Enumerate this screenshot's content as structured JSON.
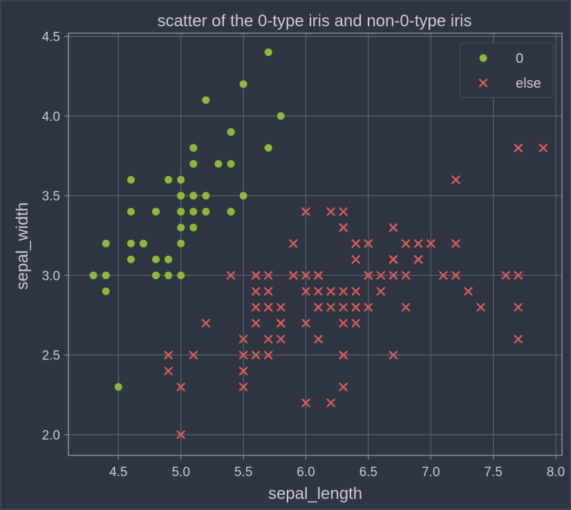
{
  "colors": {
    "background": "#2f3541",
    "frame": "#3d4350",
    "axes_border": "#8792a8",
    "grid": "#5d677a",
    "text": "#c8ccd4",
    "series_0": "#8db83a",
    "series_else": "#d65c5c"
  },
  "chart_data": {
    "type": "scatter",
    "title": "scatter of the 0-type iris and non-0-type iris",
    "xlabel": "sepal_length",
    "ylabel": "sepal_width",
    "xlim": [
      4.1,
      8.05
    ],
    "ylim": [
      1.87,
      4.52
    ],
    "xticks": [
      4.5,
      5.0,
      5.5,
      6.0,
      6.5,
      7.0,
      7.5,
      8.0
    ],
    "xtick_labels": [
      "4.5",
      "5.0",
      "5.5",
      "6.0",
      "6.5",
      "7.0",
      "7.5",
      "8.0"
    ],
    "yticks": [
      2.0,
      2.5,
      3.0,
      3.5,
      4.0,
      4.5
    ],
    "ytick_labels": [
      "2.0",
      "2.5",
      "3.0",
      "3.5",
      "4.0",
      "4.5"
    ],
    "grid": true,
    "legend_position": "top-right",
    "series": [
      {
        "name": "0",
        "marker": "circle",
        "points": [
          [
            5.1,
            3.5
          ],
          [
            4.9,
            3.0
          ],
          [
            4.7,
            3.2
          ],
          [
            4.6,
            3.1
          ],
          [
            5.0,
            3.6
          ],
          [
            5.4,
            3.9
          ],
          [
            4.6,
            3.4
          ],
          [
            5.0,
            3.4
          ],
          [
            4.4,
            2.9
          ],
          [
            4.9,
            3.1
          ],
          [
            5.4,
            3.7
          ],
          [
            4.8,
            3.4
          ],
          [
            4.8,
            3.0
          ],
          [
            4.3,
            3.0
          ],
          [
            5.8,
            4.0
          ],
          [
            5.7,
            4.4
          ],
          [
            5.4,
            3.9
          ],
          [
            5.1,
            3.5
          ],
          [
            5.7,
            3.8
          ],
          [
            5.1,
            3.8
          ],
          [
            5.4,
            3.4
          ],
          [
            5.1,
            3.7
          ],
          [
            4.6,
            3.6
          ],
          [
            5.1,
            3.3
          ],
          [
            4.8,
            3.4
          ],
          [
            5.0,
            3.0
          ],
          [
            5.0,
            3.4
          ],
          [
            5.2,
            3.5
          ],
          [
            5.2,
            3.4
          ],
          [
            4.7,
            3.2
          ],
          [
            4.8,
            3.1
          ],
          [
            5.4,
            3.4
          ],
          [
            5.2,
            4.1
          ],
          [
            5.5,
            4.2
          ],
          [
            4.9,
            3.1
          ],
          [
            5.0,
            3.2
          ],
          [
            5.5,
            3.5
          ],
          [
            4.9,
            3.6
          ],
          [
            4.4,
            3.0
          ],
          [
            5.1,
            3.4
          ],
          [
            5.0,
            3.5
          ],
          [
            4.5,
            2.3
          ],
          [
            4.4,
            3.2
          ],
          [
            5.0,
            3.5
          ],
          [
            5.1,
            3.8
          ],
          [
            4.8,
            3.0
          ],
          [
            5.1,
            3.8
          ],
          [
            4.6,
            3.2
          ],
          [
            5.3,
            3.7
          ],
          [
            5.0,
            3.3
          ]
        ]
      },
      {
        "name": "else",
        "marker": "x",
        "points": [
          [
            7.0,
            3.2
          ],
          [
            6.4,
            3.2
          ],
          [
            6.9,
            3.1
          ],
          [
            5.5,
            2.3
          ],
          [
            6.5,
            2.8
          ],
          [
            5.7,
            2.8
          ],
          [
            6.3,
            3.3
          ],
          [
            4.9,
            2.4
          ],
          [
            6.6,
            2.9
          ],
          [
            5.2,
            2.7
          ],
          [
            5.0,
            2.0
          ],
          [
            5.9,
            3.0
          ],
          [
            6.0,
            2.2
          ],
          [
            6.1,
            2.9
          ],
          [
            5.6,
            2.9
          ],
          [
            6.7,
            3.1
          ],
          [
            5.6,
            3.0
          ],
          [
            5.8,
            2.7
          ],
          [
            6.2,
            2.2
          ],
          [
            5.6,
            2.5
          ],
          [
            5.9,
            3.2
          ],
          [
            6.1,
            2.8
          ],
          [
            6.3,
            2.5
          ],
          [
            6.1,
            2.8
          ],
          [
            6.4,
            2.9
          ],
          [
            6.6,
            3.0
          ],
          [
            6.8,
            2.8
          ],
          [
            6.7,
            3.0
          ],
          [
            6.0,
            2.9
          ],
          [
            5.7,
            2.6
          ],
          [
            5.5,
            2.4
          ],
          [
            5.5,
            2.4
          ],
          [
            5.8,
            2.7
          ],
          [
            6.0,
            2.7
          ],
          [
            5.4,
            3.0
          ],
          [
            6.0,
            3.4
          ],
          [
            6.7,
            3.1
          ],
          [
            6.3,
            2.3
          ],
          [
            5.6,
            3.0
          ],
          [
            5.5,
            2.5
          ],
          [
            5.5,
            2.6
          ],
          [
            6.1,
            3.0
          ],
          [
            5.8,
            2.6
          ],
          [
            5.0,
            2.3
          ],
          [
            5.6,
            2.7
          ],
          [
            5.7,
            3.0
          ],
          [
            5.7,
            2.9
          ],
          [
            6.2,
            2.9
          ],
          [
            5.1,
            2.5
          ],
          [
            5.7,
            2.8
          ],
          [
            6.3,
            3.3
          ],
          [
            5.8,
            2.7
          ],
          [
            7.1,
            3.0
          ],
          [
            6.3,
            2.9
          ],
          [
            6.5,
            3.0
          ],
          [
            7.6,
            3.0
          ],
          [
            4.9,
            2.5
          ],
          [
            7.3,
            2.9
          ],
          [
            6.7,
            2.5
          ],
          [
            7.2,
            3.6
          ],
          [
            6.5,
            3.2
          ],
          [
            6.4,
            2.7
          ],
          [
            6.8,
            3.0
          ],
          [
            5.7,
            2.5
          ],
          [
            5.8,
            2.8
          ],
          [
            6.4,
            3.2
          ],
          [
            6.5,
            3.0
          ],
          [
            7.7,
            3.8
          ],
          [
            7.7,
            2.6
          ],
          [
            6.0,
            2.2
          ],
          [
            6.9,
            3.2
          ],
          [
            5.6,
            2.8
          ],
          [
            7.7,
            2.8
          ],
          [
            6.3,
            2.7
          ],
          [
            6.7,
            3.3
          ],
          [
            7.2,
            3.2
          ],
          [
            6.2,
            2.8
          ],
          [
            6.1,
            3.0
          ],
          [
            6.4,
            2.8
          ],
          [
            7.2,
            3.0
          ],
          [
            7.4,
            2.8
          ],
          [
            7.9,
            3.8
          ],
          [
            6.4,
            2.8
          ],
          [
            6.3,
            2.8
          ],
          [
            6.1,
            2.6
          ],
          [
            7.7,
            3.0
          ],
          [
            6.3,
            3.4
          ],
          [
            6.4,
            3.1
          ],
          [
            6.0,
            3.0
          ],
          [
            6.9,
            3.1
          ],
          [
            6.7,
            3.1
          ],
          [
            6.9,
            3.1
          ],
          [
            5.8,
            2.7
          ],
          [
            6.8,
            3.2
          ],
          [
            6.7,
            3.3
          ],
          [
            6.7,
            3.0
          ],
          [
            6.3,
            2.5
          ],
          [
            6.5,
            3.0
          ],
          [
            6.2,
            3.4
          ],
          [
            5.9,
            3.0
          ]
        ]
      }
    ]
  }
}
